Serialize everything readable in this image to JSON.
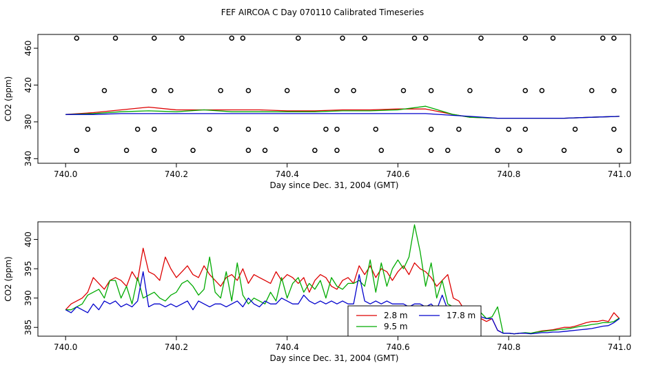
{
  "title": "FEF AIRCOA C  Day 070110  Calibrated Timeseries",
  "colors": {
    "s1": "#dd0000",
    "s2": "#00aa00",
    "s3": "#0000cc"
  },
  "chart_data": [
    {
      "type": "scatter+line",
      "xlabel": "Day since Dec. 31, 2004 (GMT)",
      "ylabel": "CO2 (ppm)",
      "xlim": [
        739.95,
        741.02
      ],
      "ylim": [
        335,
        475
      ],
      "xticks": [
        740.0,
        740.2,
        740.4,
        740.6,
        740.8,
        741.0
      ],
      "xtick_labels": [
        "740.0",
        "740.2",
        "740.4",
        "740.6",
        "740.8",
        "741.0"
      ],
      "yticks": [
        340,
        380,
        420,
        460
      ],
      "ytick_labels": [
        "340",
        "380",
        "420",
        "460"
      ],
      "grid": false,
      "calibration_points": {
        "x": [
          740.02,
          740.09,
          740.16,
          740.21,
          740.3,
          740.32,
          740.42,
          740.5,
          740.54,
          740.63,
          740.65,
          740.75,
          740.83,
          740.88,
          740.97,
          740.99,
          740.07,
          740.16,
          740.19,
          740.28,
          740.33,
          740.4,
          740.49,
          740.52,
          740.61,
          740.66,
          740.73,
          740.83,
          740.86,
          740.95,
          740.99,
          740.04,
          740.13,
          740.16,
          740.26,
          740.33,
          740.38,
          740.47,
          740.49,
          740.56,
          740.66,
          740.71,
          740.8,
          740.83,
          740.92,
          740.99,
          740.02,
          740.11,
          740.16,
          740.23,
          740.33,
          740.36,
          740.45,
          740.49,
          740.57,
          740.66,
          740.69,
          740.78,
          740.82,
          740.9,
          741.0
        ],
        "y": [
          471,
          471,
          471,
          471,
          471,
          471,
          471,
          471,
          471,
          471,
          471,
          471,
          471,
          471,
          471,
          471,
          414,
          414,
          414,
          414,
          414,
          414,
          414,
          414,
          414,
          414,
          414,
          414,
          414,
          414,
          414,
          372,
          372,
          372,
          372,
          372,
          372,
          372,
          372,
          372,
          372,
          372,
          372,
          372,
          372,
          372,
          349,
          349,
          349,
          349,
          349,
          349,
          349,
          349,
          349,
          349,
          349,
          349,
          349,
          349,
          349
        ]
      },
      "series": [
        {
          "name": "2.8 m",
          "x": [
            740.0,
            740.05,
            740.1,
            740.15,
            740.2,
            740.25,
            740.3,
            740.35,
            740.4,
            740.45,
            740.5,
            740.55,
            740.6,
            740.65,
            740.7,
            740.73,
            740.78,
            740.85,
            740.9,
            740.95,
            741.0
          ],
          "y": [
            388,
            390,
            393,
            396,
            393,
            393,
            393,
            393,
            392,
            392,
            393,
            393,
            394,
            394,
            388,
            385,
            384,
            384,
            384,
            385,
            386
          ]
        },
        {
          "name": "9.5 m",
          "x": [
            740.0,
            740.05,
            740.1,
            740.15,
            740.2,
            740.25,
            740.3,
            740.35,
            740.4,
            740.45,
            740.5,
            740.55,
            740.6,
            740.65,
            740.7,
            740.73,
            740.78,
            740.85,
            740.9,
            740.95,
            741.0
          ],
          "y": [
            388,
            389,
            391,
            392,
            391,
            393,
            391,
            391,
            391,
            391,
            392,
            392,
            393,
            397,
            388,
            385,
            384,
            384,
            384,
            385,
            386
          ]
        },
        {
          "name": "17.8 m",
          "x": [
            740.0,
            740.05,
            740.1,
            740.15,
            740.2,
            740.25,
            740.3,
            740.35,
            740.4,
            740.45,
            740.5,
            740.55,
            740.6,
            740.65,
            740.7,
            740.73,
            740.78,
            740.85,
            740.9,
            740.95,
            741.0
          ],
          "y": [
            388,
            388,
            389,
            389,
            389,
            389,
            389,
            389,
            389,
            389,
            389,
            389,
            389,
            389,
            387,
            386,
            384,
            384,
            384,
            385,
            386
          ]
        }
      ]
    },
    {
      "type": "line",
      "xlabel": "Day since Dec. 31, 2004 (GMT)",
      "ylabel": "CO2 (ppm)",
      "xlim": [
        739.95,
        741.02
      ],
      "ylim": [
        383.5,
        403
      ],
      "xticks": [
        740.0,
        740.2,
        740.4,
        740.6,
        740.8,
        741.0
      ],
      "xtick_labels": [
        "740.0",
        "740.2",
        "740.4",
        "740.6",
        "740.8",
        "741.0"
      ],
      "yticks": [
        385,
        390,
        395,
        400
      ],
      "ytick_labels": [
        "385",
        "390",
        "395",
        "400"
      ],
      "grid": false,
      "legend_position": "bottom-center",
      "series": [
        {
          "name": "2.8 m",
          "x": [
            740.0,
            740.01,
            740.02,
            740.03,
            740.04,
            740.05,
            740.06,
            740.07,
            740.08,
            740.09,
            740.1,
            740.11,
            740.12,
            740.13,
            740.14,
            740.15,
            740.16,
            740.17,
            740.18,
            740.19,
            740.2,
            740.21,
            740.22,
            740.23,
            740.24,
            740.25,
            740.26,
            740.27,
            740.28,
            740.29,
            740.3,
            740.31,
            740.32,
            740.33,
            740.34,
            740.35,
            740.36,
            740.37,
            740.38,
            740.39,
            740.4,
            740.41,
            740.42,
            740.43,
            740.44,
            740.45,
            740.46,
            740.47,
            740.48,
            740.49,
            740.5,
            740.51,
            740.52,
            740.53,
            740.54,
            740.55,
            740.56,
            740.57,
            740.58,
            740.59,
            740.6,
            740.61,
            740.62,
            740.63,
            740.64,
            740.65,
            740.66,
            740.67,
            740.68,
            740.69,
            740.7,
            740.71,
            740.72,
            740.73,
            740.74,
            740.75,
            740.76,
            740.77,
            740.78,
            740.79,
            740.8,
            740.81,
            740.82,
            740.83,
            740.84,
            740.85,
            740.86,
            740.87,
            740.88,
            740.89,
            740.9,
            740.91,
            740.92,
            740.93,
            740.94,
            740.95,
            740.96,
            740.97,
            740.98,
            740.99,
            741.0
          ],
          "y": [
            388.0,
            389.0,
            389.5,
            390.0,
            391.0,
            393.5,
            392.5,
            391.5,
            393.0,
            393.5,
            393.0,
            392.0,
            394.5,
            393.0,
            398.5,
            394.5,
            394.0,
            393.0,
            397.0,
            395.0,
            393.5,
            394.5,
            395.5,
            394.0,
            393.5,
            395.5,
            394.0,
            393.0,
            392.0,
            393.5,
            394.0,
            393.0,
            395.0,
            392.5,
            394.0,
            393.5,
            393.0,
            392.5,
            394.5,
            393.0,
            394.0,
            393.5,
            392.5,
            393.5,
            391.0,
            393.0,
            394.0,
            393.5,
            392.0,
            391.5,
            393.0,
            393.5,
            392.5,
            395.5,
            394.0,
            395.5,
            393.5,
            395.0,
            394.5,
            393.0,
            394.5,
            395.5,
            394.0,
            396.0,
            395.0,
            394.5,
            393.5,
            392.0,
            393.0,
            394.0,
            390.0,
            389.5,
            388.0,
            387.5,
            387.0,
            386.5,
            386.0,
            386.5,
            384.5,
            384.0,
            384.0,
            383.9,
            384.0,
            384.0,
            384.0,
            384.2,
            384.4,
            384.5,
            384.6,
            384.8,
            385.0,
            385.0,
            385.2,
            385.5,
            385.8,
            386.0,
            386.0,
            386.2,
            386.0,
            387.5,
            386.5
          ]
        },
        {
          "name": "9.5 m",
          "x": [
            740.0,
            740.01,
            740.02,
            740.03,
            740.04,
            740.05,
            740.06,
            740.07,
            740.08,
            740.09,
            740.1,
            740.11,
            740.12,
            740.13,
            740.14,
            740.15,
            740.16,
            740.17,
            740.18,
            740.19,
            740.2,
            740.21,
            740.22,
            740.23,
            740.24,
            740.25,
            740.26,
            740.27,
            740.28,
            740.29,
            740.3,
            740.31,
            740.32,
            740.33,
            740.34,
            740.35,
            740.36,
            740.37,
            740.38,
            740.39,
            740.4,
            740.41,
            740.42,
            740.43,
            740.44,
            740.45,
            740.46,
            740.47,
            740.48,
            740.49,
            740.5,
            740.51,
            740.52,
            740.53,
            740.54,
            740.55,
            740.56,
            740.57,
            740.58,
            740.59,
            740.6,
            740.61,
            740.62,
            740.63,
            740.64,
            740.65,
            740.66,
            740.67,
            740.68,
            740.69,
            740.7,
            740.71,
            740.72,
            740.73,
            740.74,
            740.75,
            740.76,
            740.77,
            740.78,
            740.79,
            740.8,
            740.81,
            740.82,
            740.83,
            740.84,
            740.85,
            740.86,
            740.87,
            740.88,
            740.89,
            740.9,
            740.91,
            740.92,
            740.93,
            740.94,
            740.95,
            740.96,
            740.97,
            740.98,
            740.99,
            741.0
          ],
          "y": [
            388.0,
            388.0,
            388.5,
            389.0,
            390.5,
            391.0,
            391.5,
            390.0,
            393.0,
            393.0,
            390.0,
            392.0,
            389.0,
            393.5,
            390.0,
            390.5,
            391.0,
            390.0,
            389.5,
            390.5,
            391.0,
            392.5,
            393.0,
            392.0,
            390.5,
            391.5,
            397.0,
            391.0,
            390.0,
            394.5,
            389.5,
            396.0,
            390.5,
            389.0,
            390.0,
            389.5,
            389.0,
            391.0,
            389.5,
            393.5,
            390.0,
            392.5,
            393.5,
            391.0,
            392.5,
            391.5,
            393.0,
            390.0,
            393.5,
            392.0,
            391.5,
            392.5,
            392.5,
            393.0,
            392.0,
            396.5,
            391.0,
            396.0,
            392.0,
            395.0,
            396.5,
            395.0,
            397.0,
            402.5,
            398.0,
            392.0,
            396.0,
            390.0,
            393.0,
            389.0,
            388.5,
            388.0,
            388.5,
            388.0,
            387.5,
            387.5,
            386.5,
            386.8,
            388.5,
            384.0,
            384.0,
            383.9,
            384.0,
            384.1,
            384.0,
            384.2,
            384.3,
            384.4,
            384.5,
            384.6,
            384.7,
            384.8,
            385.0,
            385.2,
            385.3,
            385.5,
            385.6,
            385.8,
            385.8,
            386.0,
            386.6
          ]
        },
        {
          "name": "17.8 m",
          "x": [
            740.0,
            740.01,
            740.02,
            740.03,
            740.04,
            740.05,
            740.06,
            740.07,
            740.08,
            740.09,
            740.1,
            740.11,
            740.12,
            740.13,
            740.14,
            740.15,
            740.16,
            740.17,
            740.18,
            740.19,
            740.2,
            740.21,
            740.22,
            740.23,
            740.24,
            740.25,
            740.26,
            740.27,
            740.28,
            740.29,
            740.3,
            740.31,
            740.32,
            740.33,
            740.34,
            740.35,
            740.36,
            740.37,
            740.38,
            740.39,
            740.4,
            740.41,
            740.42,
            740.43,
            740.44,
            740.45,
            740.46,
            740.47,
            740.48,
            740.49,
            740.5,
            740.51,
            740.52,
            740.53,
            740.54,
            740.55,
            740.56,
            740.57,
            740.58,
            740.59,
            740.6,
            740.61,
            740.62,
            740.63,
            740.64,
            740.65,
            740.66,
            740.67,
            740.68,
            740.69,
            740.7,
            740.71,
            740.72,
            740.73,
            740.74,
            740.75,
            740.76,
            740.77,
            740.78,
            740.79,
            740.8,
            740.81,
            740.82,
            740.83,
            740.84,
            740.85,
            740.86,
            740.87,
            740.88,
            740.89,
            740.9,
            740.91,
            740.92,
            740.93,
            740.94,
            740.95,
            740.96,
            740.97,
            740.98,
            740.99,
            741.0
          ],
          "y": [
            388.0,
            387.5,
            388.5,
            388.0,
            387.5,
            389.0,
            388.0,
            389.5,
            389.0,
            389.5,
            388.5,
            389.0,
            388.5,
            389.5,
            394.5,
            388.5,
            389.0,
            389.0,
            388.5,
            389.0,
            388.5,
            389.0,
            389.5,
            388.0,
            389.5,
            389.0,
            388.5,
            389.0,
            389.0,
            388.5,
            389.0,
            389.5,
            388.5,
            390.0,
            389.0,
            388.5,
            389.5,
            389.0,
            389.0,
            390.0,
            389.5,
            389.0,
            389.0,
            390.5,
            389.5,
            389.0,
            389.5,
            389.0,
            389.5,
            389.0,
            389.5,
            389.0,
            389.0,
            394.0,
            389.5,
            389.0,
            389.5,
            389.0,
            389.5,
            389.0,
            389.0,
            389.0,
            388.5,
            389.0,
            389.0,
            388.5,
            389.0,
            388.0,
            390.5,
            388.0,
            387.5,
            387.5,
            387.0,
            387.0,
            386.8,
            386.8,
            386.5,
            386.5,
            384.5,
            384.0,
            384.0,
            383.9,
            384.0,
            384.0,
            383.9,
            384.0,
            384.1,
            384.1,
            384.2,
            384.2,
            384.3,
            384.4,
            384.5,
            384.6,
            384.7,
            384.8,
            385.0,
            385.2,
            385.3,
            385.8,
            386.5
          ]
        }
      ]
    }
  ]
}
